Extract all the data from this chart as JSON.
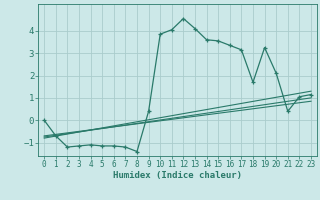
{
  "xlabel": "Humidex (Indice chaleur)",
  "bg_color": "#cce8e8",
  "line_color": "#2a7a6a",
  "grid_color": "#aacccc",
  "xlim": [
    -0.5,
    23.5
  ],
  "ylim": [
    -1.6,
    5.2
  ],
  "yticks": [
    -1,
    0,
    1,
    2,
    3,
    4
  ],
  "xticks": [
    0,
    1,
    2,
    3,
    4,
    5,
    6,
    7,
    8,
    9,
    10,
    11,
    12,
    13,
    14,
    15,
    16,
    17,
    18,
    19,
    20,
    21,
    22,
    23
  ],
  "main_x": [
    0,
    1,
    2,
    3,
    4,
    5,
    6,
    7,
    8,
    9,
    10,
    11,
    12,
    13,
    14,
    15,
    16,
    17,
    18,
    19,
    20,
    21,
    22,
    23
  ],
  "main_y": [
    0.0,
    -0.7,
    -1.2,
    -1.15,
    -1.1,
    -1.15,
    -1.15,
    -1.2,
    -1.4,
    0.4,
    3.85,
    4.05,
    4.55,
    4.1,
    3.6,
    3.55,
    3.35,
    3.15,
    1.7,
    3.25,
    2.1,
    0.4,
    1.05,
    1.15
  ],
  "line1_x": [
    0,
    23
  ],
  "line1_y": [
    -0.7,
    0.85
  ],
  "line2_x": [
    0,
    23
  ],
  "line2_y": [
    -0.75,
    1.0
  ],
  "line3_x": [
    0,
    23
  ],
  "line3_y": [
    -0.8,
    1.3
  ]
}
